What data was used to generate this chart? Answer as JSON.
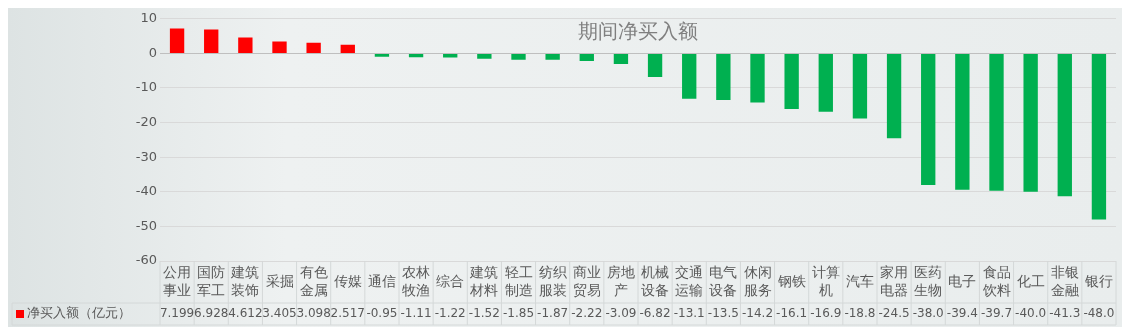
{
  "chart_data": {
    "type": "bar",
    "title": "期间净买入额",
    "categories": [
      "公用事业",
      "国防军工",
      "建筑装饰",
      "采掘",
      "有色金属",
      "传媒",
      "通信",
      "农林牧渔",
      "综合",
      "建筑材料",
      "轻工制造",
      "纺织服装",
      "商业贸易",
      "房地产",
      "机械设备",
      "交通运输",
      "电气设备",
      "休闲服务",
      "钢铁",
      "计算机",
      "汽车",
      "家用电器",
      "医药生物",
      "电子",
      "食品饮料",
      "化工",
      "非银金融",
      "银行"
    ],
    "series": [
      {
        "name": "净买入额（亿元）",
        "color": "#ff0000",
        "colors": [
          "#ff0000",
          "#ff0000",
          "#ff0000",
          "#ff0000",
          "#ff0000",
          "#ff0000",
          "#00b050",
          "#00b050",
          "#00b050",
          "#00b050",
          "#00b050",
          "#00b050",
          "#00b050",
          "#00b050",
          "#00b050",
          "#00b050",
          "#00b050",
          "#00b050",
          "#00b050",
          "#00b050",
          "#00b050",
          "#00b050",
          "#00b050",
          "#00b050",
          "#00b050",
          "#00b050",
          "#00b050",
          "#00b050"
        ],
        "values": [
          7.199,
          6.928,
          4.612,
          3.405,
          3.098,
          2.517,
          -0.95,
          -1.11,
          -1.22,
          -1.52,
          -1.85,
          -1.87,
          -2.22,
          -3.09,
          -6.82,
          -13.1,
          -13.5,
          -14.2,
          -16.1,
          -16.9,
          -18.8,
          -24.5,
          -38.0,
          -39.4,
          -39.7,
          -40.0,
          -41.3,
          -48.0
        ],
        "value_labels": [
          "7.199",
          "6.928",
          "4.612",
          "3.405",
          "3.098",
          "2.517",
          "-0.95",
          "-1.11",
          "-1.22",
          "-1.52",
          "-1.85",
          "-1.87",
          "-2.22",
          "-3.09",
          "-6.82",
          "-13.1",
          "-13.5",
          "-14.2",
          "-16.1",
          "-16.9",
          "-18.8",
          "-24.5",
          "-38.0",
          "-39.4",
          "-39.7",
          "-40.0",
          "-41.3",
          "-48.0"
        ]
      }
    ],
    "ylim": [
      -60,
      10
    ],
    "yticks": [
      -60,
      -50,
      -40,
      -30,
      -20,
      -10,
      0,
      10
    ],
    "grid": "y"
  }
}
